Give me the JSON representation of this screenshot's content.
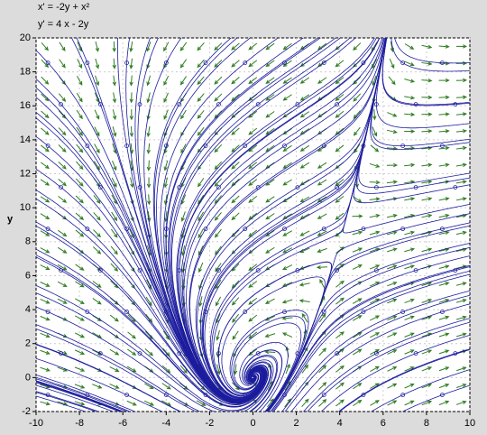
{
  "chart_data": {
    "type": "vector-field",
    "title": "x' = -2y + x²",
    "subtitle": "y' = 4 x - 2y",
    "y_label": "y",
    "xlim": [
      -10,
      10
    ],
    "ylim": [
      -2,
      20
    ],
    "xticks": [
      -10,
      -8,
      -6,
      -4,
      -2,
      0,
      2,
      4,
      6,
      8,
      10
    ],
    "yticks": [
      -2,
      0,
      2,
      4,
      6,
      8,
      10,
      12,
      14,
      16,
      18,
      20
    ],
    "grid": true,
    "arrow_color": "#2f7d22",
    "curve_color": "#1c1c9e"
  }
}
